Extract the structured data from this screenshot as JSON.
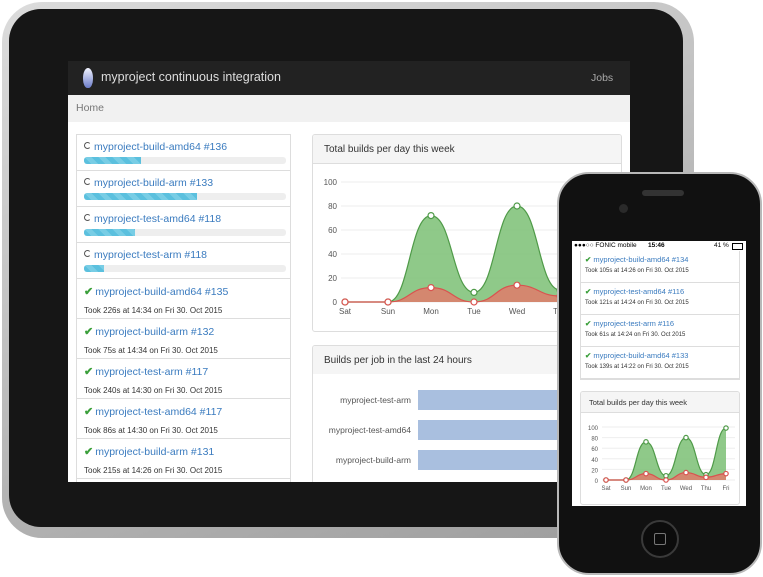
{
  "app": {
    "brand": "myproject continuous integration",
    "nav_jobs": "Jobs",
    "breadcrumb": "Home"
  },
  "jobs": [
    {
      "title": "myproject-build-amd64 #136",
      "state": "running",
      "progress": 0.28
    },
    {
      "title": "myproject-build-arm #133",
      "state": "running",
      "progress": 0.56
    },
    {
      "title": "myproject-test-amd64 #118",
      "state": "running",
      "progress": 0.25
    },
    {
      "title": "myproject-test-arm #118",
      "state": "running",
      "progress": 0.1
    },
    {
      "title": "myproject-build-amd64 #135",
      "state": "success",
      "subtitle": "Took 226s at 14:34 on Fri 30. Oct 2015"
    },
    {
      "title": "myproject-build-arm #132",
      "state": "success",
      "subtitle": "Took 75s at 14:34 on Fri 30. Oct 2015"
    },
    {
      "title": "myproject-test-arm #117",
      "state": "success",
      "subtitle": "Took 240s at 14:30 on Fri 30. Oct 2015"
    },
    {
      "title": "myproject-test-amd64 #117",
      "state": "success",
      "subtitle": "Took 86s at 14:30 on Fri 30. Oct 2015"
    },
    {
      "title": "myproject-build-arm #131",
      "state": "success",
      "subtitle": "Took 215s at 14:26 on Fri 30. Oct 2015"
    }
  ],
  "panels": {
    "builds_per_day_title": "Total builds per day this week",
    "builds_per_job_title": "Builds per job in the last 24 hours"
  },
  "chart_data": [
    {
      "type": "area",
      "title": "Total builds per day this week",
      "categories": [
        "Sat",
        "Sun",
        "Mon",
        "Tue",
        "Wed",
        "Thu"
      ],
      "y_ticks": [
        "0",
        "20",
        "40",
        "60",
        "80",
        "100"
      ],
      "ylim": [
        0,
        100
      ],
      "series": [
        {
          "values": [
            0,
            0,
            72,
            8,
            80,
            10
          ],
          "color": "#7bbf74"
        },
        {
          "values": [
            0,
            0,
            12,
            0,
            14,
            5
          ],
          "color": "#e07b6b"
        }
      ]
    },
    {
      "type": "bar",
      "title": "Builds per job in the last 24 hours",
      "categories": [
        "myproject-test-arm",
        "myproject-test-amd64",
        "myproject-build-arm"
      ],
      "values": [
        18,
        18,
        18
      ],
      "color": "#a9bfdf"
    },
    {
      "type": "area",
      "title": "Total builds per day this week",
      "categories": [
        "Sat",
        "Sun",
        "Mon",
        "Tue",
        "Wed",
        "Thu",
        "Fri"
      ],
      "y_ticks": [
        "0",
        "20",
        "40",
        "60",
        "80",
        "100"
      ],
      "ylim": [
        0,
        100
      ],
      "series": [
        {
          "values": [
            0,
            0,
            72,
            8,
            80,
            10,
            98
          ],
          "color": "#7bbf74"
        },
        {
          "values": [
            0,
            0,
            12,
            0,
            14,
            5,
            12
          ],
          "color": "#e07b6b"
        }
      ]
    }
  ],
  "phone": {
    "status_left": "●●●○○ FONIC mobile",
    "status_time": "15:46",
    "status_right": "41 %",
    "jobs": [
      {
        "title": "myproject-build-amd64 #134",
        "subtitle": "Took 105s at 14:26 on Fri 30. Oct 2015"
      },
      {
        "title": "myproject-test-amd64 #116",
        "subtitle": "Took 121s at 14:24 on Fri 30. Oct 2015"
      },
      {
        "title": "myproject-test-arm #116",
        "subtitle": "Took 61s at 14:24 on Fri 30. Oct 2015"
      },
      {
        "title": "myproject-build-amd64 #133",
        "subtitle": "Took 139s at 14:22 on Fri 30. Oct 2015"
      }
    ],
    "chart_title": "Total builds per day this week"
  }
}
